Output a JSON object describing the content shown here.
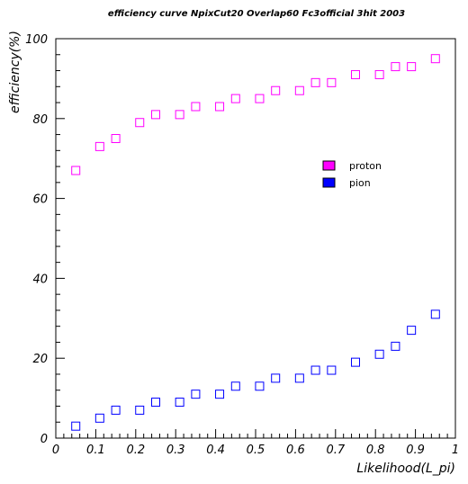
{
  "chart_data": {
    "type": "scatter",
    "title": "efficiency curve NpixCut20 Overlap60 Fc3official 3hit 2003",
    "xlabel": "Likelihood(L_pi)",
    "ylabel": "efficiency(%)",
    "xlim": [
      0,
      1
    ],
    "ylim": [
      0,
      100
    ],
    "x_ticks": [
      0,
      0.1,
      0.2,
      0.3,
      0.4,
      0.5,
      0.6,
      0.7,
      0.8,
      0.9,
      1
    ],
    "x_tick_labels": [
      "0",
      "0.1",
      "0.2",
      "0.3",
      "0.4",
      "0.5",
      "0.6",
      "0.7",
      "0.8",
      "0.9",
      "1"
    ],
    "y_ticks": [
      0,
      20,
      40,
      60,
      80,
      100
    ],
    "y_tick_labels": [
      "0",
      "20",
      "40",
      "60",
      "80",
      "100"
    ],
    "grid": false,
    "legend_position": "right-middle",
    "series": [
      {
        "name": "proton",
        "color": "#ff00ff",
        "x": [
          0.05,
          0.11,
          0.15,
          0.21,
          0.25,
          0.31,
          0.35,
          0.41,
          0.45,
          0.51,
          0.55,
          0.61,
          0.65,
          0.69,
          0.75,
          0.81,
          0.85,
          0.89,
          0.95
        ],
        "y": [
          67,
          73,
          75,
          79,
          81,
          81,
          83,
          83,
          85,
          85,
          87,
          87,
          89,
          89,
          91,
          91,
          93,
          93,
          95
        ]
      },
      {
        "name": "pion",
        "color": "#0000ff",
        "x": [
          0.05,
          0.11,
          0.15,
          0.21,
          0.25,
          0.31,
          0.35,
          0.41,
          0.45,
          0.51,
          0.55,
          0.61,
          0.65,
          0.69,
          0.75,
          0.81,
          0.85,
          0.89,
          0.95
        ],
        "y": [
          3,
          5,
          7,
          7,
          9,
          9,
          11,
          11,
          13,
          13,
          15,
          15,
          17,
          17,
          19,
          21,
          23,
          27,
          31
        ]
      }
    ]
  }
}
